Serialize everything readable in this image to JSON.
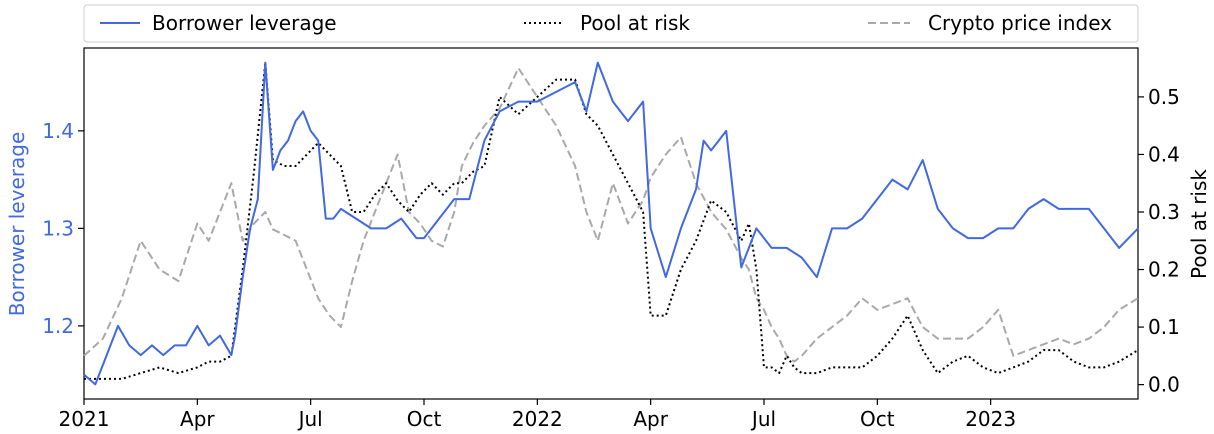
{
  "chart_data": {
    "type": "line",
    "legend": {
      "placement": "top-outside",
      "entries": [
        {
          "label": "Borrower leverage",
          "color": "#4169e1",
          "style": "solid"
        },
        {
          "label": "Pool at risk",
          "color": "#000000",
          "style": "dotted"
        },
        {
          "label": "Crypto price index",
          "color": "#a9a9a9",
          "style": "dashed"
        }
      ]
    },
    "xlabel": "",
    "ylabel_left": "Borrower leverage",
    "ylabel_right": "Pool at risk",
    "left_axis_color": "#4169e1",
    "x_ticks": [
      "2021",
      "Apr",
      "Jul",
      "Oct",
      "2022",
      "Apr",
      "Jul",
      "Oct",
      "2023"
    ],
    "x_tick_months": [
      0,
      3,
      6,
      9,
      12,
      15,
      18,
      21,
      24
    ],
    "xlim_months": [
      0,
      27.9
    ],
    "y_left_ticks": [
      "1.2",
      "1.3",
      "1.4"
    ],
    "y_left_tick_values": [
      1.2,
      1.3,
      1.4
    ],
    "ylim_left": [
      1.125,
      1.485
    ],
    "y_right_ticks": [
      "0.0",
      "0.1",
      "0.2",
      "0.3",
      "0.4",
      "0.5"
    ],
    "y_right_tick_values": [
      0.0,
      0.1,
      0.2,
      0.3,
      0.4,
      0.5
    ],
    "ylim_right": [
      -0.025,
      0.585
    ],
    "grid": false,
    "series": [
      {
        "name": "Borrower leverage",
        "axis": "left",
        "x_months": [
          0,
          0.3,
          0.6,
          0.9,
          1.2,
          1.5,
          1.8,
          2.1,
          2.4,
          2.7,
          3.0,
          3.3,
          3.6,
          3.9,
          4.0,
          4.2,
          4.4,
          4.6,
          4.8,
          5.0,
          5.2,
          5.4,
          5.6,
          5.8,
          6.0,
          6.2,
          6.4,
          6.6,
          6.8,
          7.2,
          7.6,
          8.0,
          8.4,
          8.8,
          9.0,
          9.2,
          9.4,
          9.6,
          9.8,
          10.2,
          10.6,
          11.0,
          11.5,
          12.0,
          12.5,
          13.0,
          13.3,
          13.6,
          14.0,
          14.4,
          14.8,
          15.0,
          15.4,
          15.8,
          16.2,
          16.4,
          16.6,
          16.8,
          17.0,
          17.4,
          17.8,
          18.2,
          18.6,
          19.0,
          19.4,
          19.8,
          20.2,
          20.6,
          21.0,
          21.4,
          21.8,
          22.2,
          22.6,
          23.0,
          23.4,
          23.8,
          24.2,
          24.6,
          25.0,
          25.4,
          25.8,
          26.2,
          26.6,
          27.0,
          27.4,
          27.9
        ],
        "values": [
          1.15,
          1.14,
          1.17,
          1.2,
          1.18,
          1.17,
          1.18,
          1.17,
          1.18,
          1.18,
          1.2,
          1.18,
          1.19,
          1.17,
          1.19,
          1.25,
          1.3,
          1.33,
          1.47,
          1.36,
          1.38,
          1.39,
          1.41,
          1.42,
          1.4,
          1.39,
          1.31,
          1.31,
          1.32,
          1.31,
          1.3,
          1.3,
          1.31,
          1.29,
          1.29,
          1.3,
          1.31,
          1.32,
          1.33,
          1.33,
          1.39,
          1.42,
          1.43,
          1.43,
          1.44,
          1.45,
          1.42,
          1.47,
          1.43,
          1.41,
          1.43,
          1.3,
          1.25,
          1.3,
          1.34,
          1.39,
          1.38,
          1.39,
          1.4,
          1.26,
          1.3,
          1.28,
          1.28,
          1.27,
          1.25,
          1.3,
          1.3,
          1.31,
          1.33,
          1.35,
          1.34,
          1.37,
          1.32,
          1.3,
          1.29,
          1.29,
          1.3,
          1.3,
          1.32,
          1.33,
          1.32,
          1.32,
          1.32,
          1.3,
          1.28,
          1.3
        ]
      },
      {
        "name": "Pool at risk",
        "axis": "right",
        "x_months": [
          0,
          0.5,
          1.0,
          1.5,
          2.0,
          2.5,
          3.0,
          3.3,
          3.6,
          3.9,
          4.2,
          4.5,
          4.8,
          5.0,
          5.3,
          5.6,
          5.9,
          6.2,
          6.5,
          6.8,
          7.1,
          7.4,
          7.7,
          8.0,
          8.3,
          8.6,
          8.9,
          9.2,
          9.5,
          9.8,
          10.0,
          10.3,
          10.6,
          11.0,
          11.5,
          12.0,
          12.5,
          13.0,
          13.3,
          13.6,
          14.0,
          14.4,
          14.8,
          15.0,
          15.4,
          15.8,
          16.2,
          16.6,
          17.0,
          17.4,
          17.6,
          17.8,
          18.0,
          18.2,
          18.4,
          18.6,
          18.8,
          19.0,
          19.4,
          19.8,
          20.2,
          20.6,
          21.0,
          21.4,
          21.8,
          22.2,
          22.6,
          23.0,
          23.4,
          23.8,
          24.2,
          24.6,
          25.0,
          25.4,
          25.8,
          26.2,
          26.6,
          27.0,
          27.4,
          27.9
        ],
        "values": [
          0.01,
          0.01,
          0.01,
          0.02,
          0.03,
          0.02,
          0.03,
          0.04,
          0.04,
          0.05,
          0.2,
          0.37,
          0.56,
          0.39,
          0.38,
          0.38,
          0.4,
          0.42,
          0.4,
          0.38,
          0.3,
          0.3,
          0.33,
          0.35,
          0.32,
          0.3,
          0.33,
          0.35,
          0.33,
          0.35,
          0.35,
          0.37,
          0.38,
          0.5,
          0.47,
          0.5,
          0.53,
          0.53,
          0.47,
          0.45,
          0.4,
          0.35,
          0.3,
          0.12,
          0.12,
          0.2,
          0.25,
          0.32,
          0.3,
          0.25,
          0.28,
          0.2,
          0.03,
          0.03,
          0.02,
          0.05,
          0.03,
          0.02,
          0.02,
          0.03,
          0.03,
          0.03,
          0.05,
          0.08,
          0.12,
          0.06,
          0.02,
          0.04,
          0.05,
          0.03,
          0.02,
          0.03,
          0.04,
          0.06,
          0.06,
          0.04,
          0.03,
          0.03,
          0.04,
          0.06
        ]
      },
      {
        "name": "Crypto price index",
        "axis": "right",
        "x_months": [
          0,
          0.5,
          1.0,
          1.5,
          2.0,
          2.5,
          3.0,
          3.3,
          3.6,
          3.9,
          4.2,
          4.5,
          4.8,
          5.0,
          5.3,
          5.6,
          5.9,
          6.2,
          6.5,
          6.8,
          7.1,
          7.4,
          7.7,
          8.0,
          8.3,
          8.6,
          8.9,
          9.2,
          9.5,
          9.8,
          10.0,
          10.3,
          10.6,
          11.0,
          11.5,
          12.0,
          12.5,
          13.0,
          13.3,
          13.6,
          14.0,
          14.4,
          14.8,
          15.0,
          15.4,
          15.8,
          16.2,
          16.6,
          17.0,
          17.4,
          17.6,
          17.8,
          18.0,
          18.2,
          18.4,
          18.6,
          18.8,
          19.0,
          19.4,
          19.8,
          20.2,
          20.6,
          21.0,
          21.4,
          21.8,
          22.2,
          22.6,
          23.0,
          23.4,
          23.8,
          24.2,
          24.6,
          25.0,
          25.4,
          25.8,
          26.2,
          26.6,
          27.0,
          27.4,
          27.9
        ],
        "values": [
          0.05,
          0.08,
          0.15,
          0.25,
          0.2,
          0.18,
          0.28,
          0.25,
          0.3,
          0.35,
          0.25,
          0.28,
          0.3,
          0.27,
          0.26,
          0.25,
          0.2,
          0.15,
          0.12,
          0.1,
          0.18,
          0.25,
          0.3,
          0.35,
          0.4,
          0.3,
          0.28,
          0.25,
          0.24,
          0.3,
          0.38,
          0.42,
          0.45,
          0.48,
          0.55,
          0.5,
          0.45,
          0.38,
          0.3,
          0.25,
          0.35,
          0.28,
          0.32,
          0.36,
          0.4,
          0.43,
          0.35,
          0.3,
          0.27,
          0.22,
          0.2,
          0.15,
          0.13,
          0.1,
          0.08,
          0.05,
          0.04,
          0.05,
          0.08,
          0.1,
          0.12,
          0.15,
          0.13,
          0.14,
          0.15,
          0.1,
          0.08,
          0.08,
          0.08,
          0.1,
          0.13,
          0.05,
          0.06,
          0.07,
          0.08,
          0.07,
          0.08,
          0.1,
          0.13,
          0.15
        ]
      }
    ]
  }
}
